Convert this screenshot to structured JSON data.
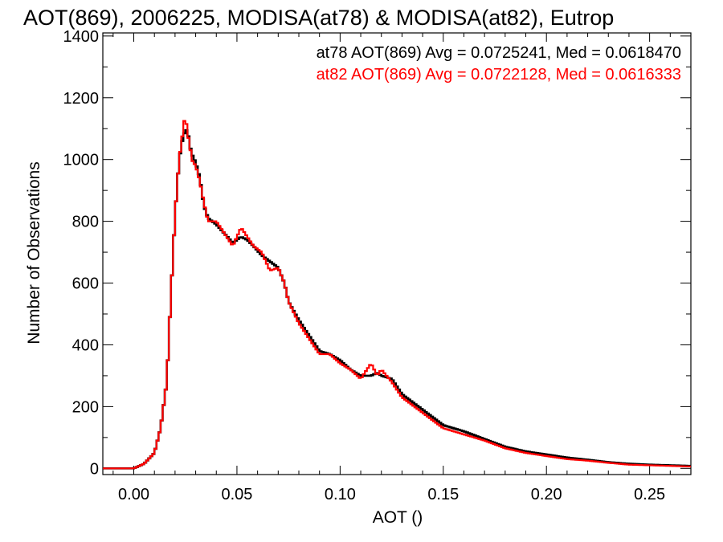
{
  "chart_data": {
    "type": "line",
    "title": "AOT(869), 2006225, MODISA(at78) & MODISA(at82), Eutrop",
    "xlabel": "AOT ()",
    "ylabel": "Number of Observations",
    "xlim": [
      -0.015,
      0.27
    ],
    "ylim": [
      -20,
      1410
    ],
    "xticks": [
      0.0,
      0.05,
      0.1,
      0.15,
      0.2,
      0.25
    ],
    "xtick_labels": [
      "0.00",
      "0.05",
      "0.10",
      "0.15",
      "0.20",
      "0.25"
    ],
    "yticks": [
      0,
      200,
      400,
      600,
      800,
      1000,
      1200,
      1400
    ],
    "ytick_labels": [
      "0",
      "200",
      "400",
      "600",
      "800",
      "1000",
      "1200",
      "1400"
    ],
    "grid": false,
    "legend_position": "top-right",
    "series": [
      {
        "name": "at78",
        "color": "#000000",
        "legend_text": "at78 AOT(869) Avg = 0.0725241, Med = 0.0618470",
        "x": [
          -0.01,
          0.0,
          0.005,
          0.01,
          0.013,
          0.016,
          0.018,
          0.02,
          0.022,
          0.024,
          0.026,
          0.027,
          0.028,
          0.03,
          0.032,
          0.034,
          0.036,
          0.04,
          0.044,
          0.048,
          0.052,
          0.055,
          0.058,
          0.062,
          0.066,
          0.07,
          0.073,
          0.075,
          0.08,
          0.085,
          0.09,
          0.095,
          0.1,
          0.105,
          0.11,
          0.115,
          0.118,
          0.12,
          0.125,
          0.13,
          0.14,
          0.15,
          0.16,
          0.17,
          0.18,
          0.19,
          0.2,
          0.21,
          0.22,
          0.23,
          0.24,
          0.25,
          0.26,
          0.27
        ],
        "y": [
          0,
          0,
          15,
          50,
          130,
          280,
          560,
          820,
          1000,
          1080,
          1100,
          1050,
          1020,
          990,
          940,
          850,
          810,
          790,
          760,
          730,
          750,
          740,
          720,
          690,
          670,
          650,
          600,
          540,
          480,
          430,
          380,
          370,
          350,
          320,
          300,
          300,
          310,
          300,
          290,
          240,
          190,
          140,
          120,
          95,
          70,
          55,
          45,
          35,
          28,
          20,
          15,
          12,
          10,
          8
        ]
      },
      {
        "name": "at82",
        "color": "#ff0000",
        "legend_text": "at82 AOT(869) Avg = 0.0722128, Med = 0.0616333",
        "x": [
          -0.01,
          0.0,
          0.005,
          0.01,
          0.013,
          0.016,
          0.018,
          0.02,
          0.022,
          0.024,
          0.025,
          0.026,
          0.027,
          0.028,
          0.03,
          0.032,
          0.034,
          0.036,
          0.04,
          0.044,
          0.048,
          0.052,
          0.055,
          0.058,
          0.062,
          0.066,
          0.07,
          0.073,
          0.075,
          0.08,
          0.085,
          0.09,
          0.095,
          0.1,
          0.105,
          0.11,
          0.115,
          0.118,
          0.12,
          0.125,
          0.13,
          0.14,
          0.15,
          0.16,
          0.17,
          0.18,
          0.19,
          0.2,
          0.21,
          0.22,
          0.23,
          0.24,
          0.25,
          0.26,
          0.27
        ],
        "y": [
          0,
          0,
          15,
          50,
          130,
          280,
          560,
          820,
          1000,
          1100,
          1150,
          1080,
          1060,
          1000,
          980,
          930,
          860,
          800,
          800,
          760,
          720,
          780,
          750,
          720,
          700,
          640,
          650,
          600,
          540,
          470,
          420,
          370,
          370,
          340,
          320,
          290,
          340,
          300,
          320,
          280,
          230,
          180,
          130,
          110,
          90,
          65,
          50,
          40,
          30,
          25,
          18,
          12,
          10,
          8,
          6
        ]
      }
    ]
  }
}
